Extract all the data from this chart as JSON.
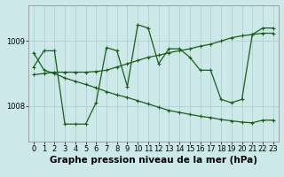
{
  "line1_x": [
    0,
    1,
    2,
    3,
    4,
    5,
    6,
    7,
    8,
    9,
    10,
    11,
    12,
    13,
    14,
    15,
    16,
    17,
    18,
    19,
    20,
    21,
    22,
    23
  ],
  "line1_y": [
    1008.6,
    1008.85,
    1008.85,
    1007.72,
    1007.72,
    1007.72,
    1008.05,
    1008.9,
    1008.85,
    1008.3,
    1009.25,
    1009.2,
    1008.65,
    1008.88,
    1008.88,
    1008.75,
    1008.55,
    1008.55,
    1008.1,
    1008.05,
    1008.1,
    1009.1,
    1009.2,
    1009.2
  ],
  "line2_x": [
    0,
    1,
    2,
    3,
    4,
    5,
    6,
    7,
    8,
    9,
    10,
    11,
    12,
    13,
    14,
    15,
    16,
    17,
    18,
    19,
    20,
    21,
    22,
    23
  ],
  "line2_y": [
    1008.82,
    1008.55,
    1008.5,
    1008.43,
    1008.38,
    1008.33,
    1008.28,
    1008.22,
    1008.17,
    1008.13,
    1008.08,
    1008.03,
    1007.98,
    1007.93,
    1007.9,
    1007.87,
    1007.84,
    1007.82,
    1007.79,
    1007.77,
    1007.75,
    1007.74,
    1007.78,
    1007.78
  ],
  "line3_x": [
    0,
    1,
    2,
    3,
    4,
    5,
    6,
    7,
    8,
    9,
    10,
    11,
    12,
    13,
    14,
    15,
    16,
    17,
    18,
    19,
    20,
    21,
    22,
    23
  ],
  "line3_y": [
    1008.48,
    1008.5,
    1008.52,
    1008.52,
    1008.52,
    1008.52,
    1008.53,
    1008.55,
    1008.6,
    1008.65,
    1008.7,
    1008.75,
    1008.78,
    1008.82,
    1008.85,
    1008.88,
    1008.92,
    1008.95,
    1009.0,
    1009.05,
    1009.08,
    1009.1,
    1009.12,
    1009.12
  ],
  "bg_color": "#cce8e8",
  "grid_color": "#aacccc",
  "line_color": "#1a5e1a",
  "ylim": [
    1007.45,
    1009.55
  ],
  "xlim": [
    -0.5,
    23.5
  ],
  "yticks": [
    1008,
    1009
  ],
  "xticks": [
    0,
    1,
    2,
    3,
    4,
    5,
    6,
    7,
    8,
    9,
    10,
    11,
    12,
    13,
    14,
    15,
    16,
    17,
    18,
    19,
    20,
    21,
    22,
    23
  ],
  "xlabel": "Graphe pression niveau de la mer (hPa)",
  "xlabel_fontsize": 7.5,
  "tick_fontsize": 6.0
}
